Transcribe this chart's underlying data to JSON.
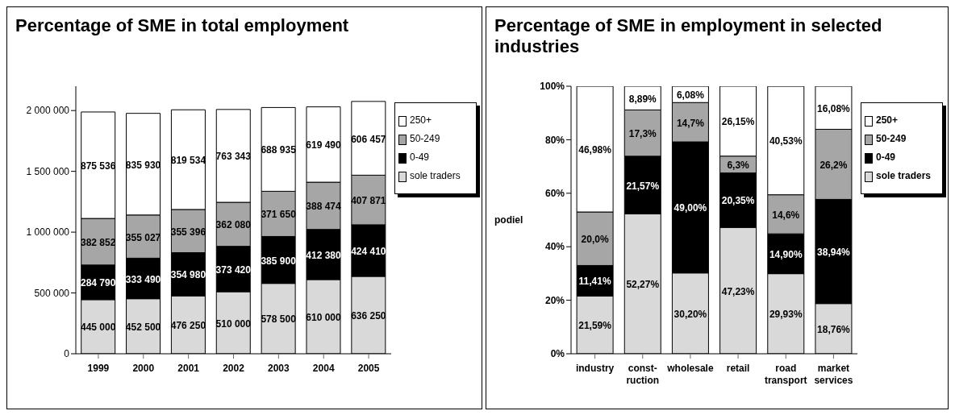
{
  "chart_data": [
    {
      "type": "bar",
      "title": "Percentage of SME in total employment",
      "stacked": true,
      "categories": [
        "1999",
        "2000",
        "2001",
        "2002",
        "2003",
        "2004",
        "2005"
      ],
      "series": [
        {
          "name": "sole traders",
          "color": "#d9d9d9",
          "values": [
            445000,
            452500,
            476250,
            510000,
            578500,
            610000,
            636250
          ]
        },
        {
          "name": "0-49",
          "color": "#000000",
          "values": [
            284790,
            333490,
            354980,
            373420,
            385900,
            412380,
            424410
          ]
        },
        {
          "name": "50-249",
          "color": "#a6a6a6",
          "values": [
            382852,
            355027,
            355396,
            362080,
            371650,
            388474,
            407871
          ]
        },
        {
          "name": "250+",
          "color": "#ffffff",
          "values": [
            875536,
            835930,
            819534,
            763343,
            688935,
            619490,
            606457
          ]
        }
      ],
      "ylim": [
        0,
        2200000
      ],
      "yticks": [
        0,
        {
          "value": 500000,
          "label": "500 000"
        },
        {
          "value": 1000000,
          "label": "1 000 000"
        },
        {
          "value": 1500000,
          "label": "1 500 000"
        },
        {
          "value": 2000000,
          "label": "2 000 000"
        }
      ],
      "data_labels": true,
      "legend": "right"
    },
    {
      "type": "bar",
      "title": "Percentage of SME in employment in selected industries",
      "ylabel": "podiel",
      "stacked": true,
      "categories": [
        "industry",
        "const-ruction",
        "wholesale",
        "retail",
        "road transport",
        "market services"
      ],
      "series": [
        {
          "name": "sole traders",
          "color": "#d9d9d9",
          "values": [
            21.59,
            52.27,
            30.2,
            47.23,
            29.93,
            18.76
          ],
          "value_labels": [
            "21,59%",
            "52,27%",
            "30,20%",
            "47,23%",
            "29,93%",
            "18,76%"
          ]
        },
        {
          "name": "0-49",
          "color": "#000000",
          "values": [
            11.41,
            21.57,
            49.0,
            20.35,
            14.9,
            38.94
          ],
          "value_labels": [
            "11,41%",
            "21,57%",
            "49,00%",
            "20,35%",
            "14,90%",
            "38,94%"
          ]
        },
        {
          "name": "50-249",
          "color": "#a6a6a6",
          "values": [
            20.0,
            17.3,
            14.7,
            6.3,
            14.6,
            26.2
          ],
          "value_labels": [
            "20,0%",
            "17,3%",
            "14,7%",
            "6,3%",
            "14,6%",
            "26,2%"
          ]
        },
        {
          "name": "250+",
          "color": "#ffffff",
          "values": [
            46.98,
            8.89,
            6.08,
            26.15,
            40.53,
            16.08
          ],
          "value_labels": [
            "46,98%",
            "8,89%",
            "6,08%",
            "26,15%",
            "40,53%",
            "16,08%"
          ]
        }
      ],
      "ylim": [
        0,
        100
      ],
      "yticks": [
        {
          "value": 0,
          "label": "0%"
        },
        {
          "value": 20,
          "label": "20%"
        },
        {
          "value": 40,
          "label": "40%"
        },
        {
          "value": 60,
          "label": "60%"
        },
        {
          "value": 80,
          "label": "80%"
        },
        {
          "value": 100,
          "label": "100%"
        }
      ],
      "legend": "right"
    }
  ]
}
